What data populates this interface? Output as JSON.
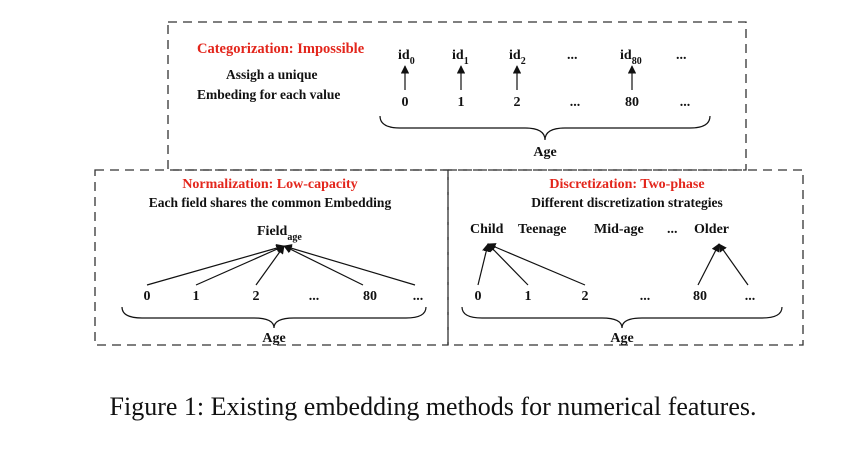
{
  "categorization": {
    "title": "Categorization: Impossible",
    "desc_line1": "Assigh a unique",
    "desc_line2": "Embeding for each value",
    "ids": [
      {
        "base": "id",
        "sub": "0"
      },
      {
        "base": "id",
        "sub": "1"
      },
      {
        "base": "id",
        "sub": "2"
      },
      {
        "base": "...",
        "sub": ""
      },
      {
        "base": "id",
        "sub": "80"
      },
      {
        "base": "...",
        "sub": ""
      }
    ],
    "values": [
      "0",
      "1",
      "2",
      "...",
      "80",
      "..."
    ],
    "brace_label": "Age"
  },
  "normalization": {
    "title": "Normalization: Low-capacity",
    "desc": "Each field shares the common Embedding",
    "field_base": "Field",
    "field_sub": "age",
    "values": [
      "0",
      "1",
      "2",
      "...",
      "80",
      "..."
    ],
    "brace_label": "Age"
  },
  "discretization": {
    "title": "Discretization: Two-phase",
    "desc": "Different discretization  strategies",
    "groups": [
      "Child",
      "Teenage",
      "Mid-age",
      "...",
      "Older"
    ],
    "values": [
      "0",
      "1",
      "2",
      "...",
      "80",
      "..."
    ],
    "brace_label": "Age"
  },
  "caption": {
    "prefix": "Figure 1:",
    "text": " Existing embedding methods for numerical features."
  },
  "colors": {
    "title_red": "#e3261c",
    "text": "#111111",
    "dashed_border": "#333333"
  }
}
